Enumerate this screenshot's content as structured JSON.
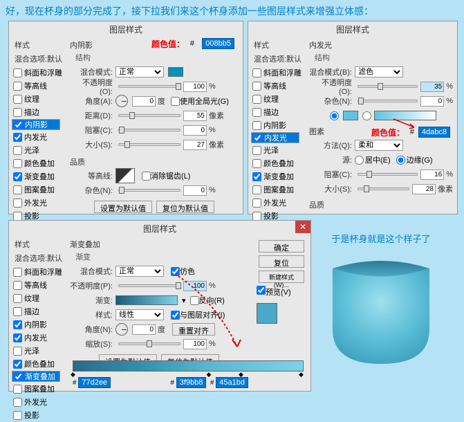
{
  "intro": "好，现在杯身的部分完成了，接下拉我们来这个杯身添加一些图层样式来增强立体感：",
  "dialog_title": "图层样式",
  "side": {
    "h1": "样式",
    "h2": "混合选项:默认",
    "items": [
      "斜面和浮雕",
      "等高线",
      "纹理",
      "描边",
      "内阴影",
      "内发光",
      "光泽",
      "颜色叠加",
      "渐变叠加",
      "图案叠加",
      "外发光",
      "投影"
    ]
  },
  "p1": {
    "checked": [
      4,
      5,
      8
    ],
    "sel_idx": 4,
    "sect": "内阴影",
    "sub": "结构",
    "blend_lbl": "混合模式:",
    "blend_val": "正常",
    "color_lbl": "颜色值：",
    "hex": "008bb5",
    "swatch": "#0093b8",
    "opacity_lbl": "不透明度(O):",
    "opacity": "100",
    "angle_lbl": "角度(A):",
    "angle": "0",
    "global_lbl": "使用全局光(G)",
    "dist_lbl": "距离(D):",
    "dist": "55",
    "choke_lbl": "阻塞(C):",
    "choke": "0",
    "size_lbl": "大小(S):",
    "size": "27",
    "px": "像素",
    "pct": "%",
    "deg": "度",
    "quality": "品质",
    "contour_lbl": "等高线:",
    "aa_lbl": "消除锯齿(L)",
    "noise_lbl": "杂色(N):",
    "noise": "0",
    "btn1": "设置为默认值",
    "btn2": "复位为默认值"
  },
  "p2": {
    "checked": [
      5,
      8
    ],
    "sel_idx": 5,
    "sect": "内发光",
    "sub": "结构",
    "blend_lbl": "混合模式(B):",
    "blend_val": "滤色",
    "opacity_lbl": "不透明度(O):",
    "opacity": "35",
    "noise_lbl": "杂色(N):",
    "noise": "0",
    "swatch": "#5ec4df",
    "grad": "linear-gradient(90deg,#5ec4df,#fff)",
    "elem": "图素",
    "method_lbl": "方法(Q):",
    "method_val": "柔和",
    "color_lbl": "颜色值：",
    "hex": "4dabc8",
    "src_lbl": "源:",
    "src_c": "居中(E)",
    "src_e": "边缘(G)",
    "choke_lbl": "阻塞(C):",
    "choke": "16",
    "size_lbl": "大小(S):",
    "size": "28",
    "px": "像素",
    "quality": "品质"
  },
  "p3": {
    "checked": [
      4,
      5,
      7,
      8
    ],
    "sel_idx": 8,
    "sect": "渐变叠加",
    "sub": "渐变",
    "blend_lbl": "混合模式:",
    "blend_val": "正常",
    "dither_lbl": "仿色",
    "opacity_lbl": "不透明度(P):",
    "opacity": "100",
    "grad_lbl": "渐变:",
    "grad": "linear-gradient(90deg,#1a5a7a,#7fd4e8)",
    "rev_lbl": "反向(R)",
    "style_lbl": "样式:",
    "style_val": "线性",
    "align_lbl": "与图层对齐(I)",
    "angle_lbl": "角度(N):",
    "angle": "0",
    "reset_a": "重置对齐",
    "scale_lbl": "缩放(S):",
    "scale": "100",
    "btn_ok": "确定",
    "btn_cancel": "复位",
    "btn_new": "新建样式(W)...",
    "btn_prev": "预览(V)",
    "prev_color": "#4aa8c8",
    "btn1": "设置为默认值",
    "btn2": "复位为默认值",
    "bighex1": "77d2ee",
    "bighex2": "3f9bb8",
    "bighex3": "45a1bd",
    "biggrad": "linear-gradient(90deg,#2a6a8a 0%,#3590ac 30%,#5ab8d0 60%,#7dd2e8 100%)"
  },
  "cup_txt": "于是杯身就是这个样子了"
}
